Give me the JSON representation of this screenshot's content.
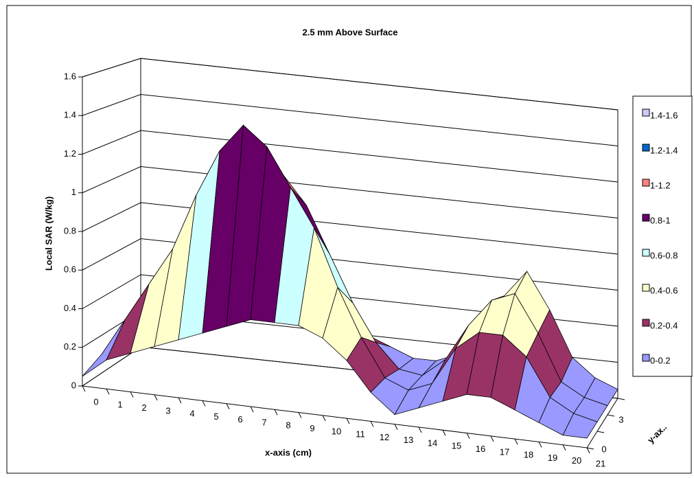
{
  "chart_data": {
    "type": "surface",
    "title": "2.5 mm Above Surface",
    "y_label": "Local SAR (W/kg)",
    "x_label": "x-axis (cm)",
    "depth_label": "y-ax..",
    "categories": [
      "0",
      "1",
      "2",
      "3",
      "4",
      "5",
      "6",
      "7",
      "8",
      "9",
      "10",
      "11",
      "12",
      "13",
      "14",
      "15",
      "16",
      "17",
      "18",
      "19",
      "20",
      "21"
    ],
    "series": [
      {
        "name": "0",
        "values": [
          0.05,
          0.15,
          0.2,
          0.25,
          0.3,
          0.35,
          0.4,
          0.45,
          0.45,
          0.45,
          0.4,
          0.3,
          0.15,
          0.05,
          0.1,
          0.15,
          0.2,
          0.2,
          0.15,
          0.1,
          0.05,
          0.05
        ]
      },
      {
        "name": null,
        "values": [
          0.1,
          0.3,
          0.5,
          0.7,
          1.0,
          1.25,
          1.4,
          1.3,
          1.1,
          0.9,
          0.6,
          0.35,
          0.15,
          0.1,
          0.15,
          0.35,
          0.45,
          0.45,
          0.35,
          0.15,
          0.08,
          0.05
        ]
      },
      {
        "name": null,
        "values": [
          0.1,
          0.25,
          0.45,
          0.8,
          1.1,
          1.25,
          1.2,
          1.1,
          0.95,
          0.7,
          0.45,
          0.25,
          0.12,
          0.1,
          0.2,
          0.4,
          0.55,
          0.6,
          0.4,
          0.15,
          0.08,
          0.05
        ]
      },
      {
        "name": "3",
        "values": [
          0.05,
          0.15,
          0.3,
          0.5,
          0.4,
          0.35,
          0.3,
          0.3,
          0.3,
          0.25,
          0.2,
          0.15,
          0.1,
          0.1,
          0.15,
          0.3,
          0.5,
          0.65,
          0.45,
          0.2,
          0.1,
          0.05
        ]
      }
    ],
    "ylim": [
      0,
      1.6
    ],
    "yticks": [
      0,
      0.2,
      0.4,
      0.6,
      0.8,
      1,
      1.2,
      1.4,
      1.6
    ],
    "grid": true,
    "bands": [
      {
        "name": "0-0.2",
        "color": "#9999ff"
      },
      {
        "name": "0.2-0.4",
        "color": "#993366"
      },
      {
        "name": "0.4-0.6",
        "color": "#ffffcc"
      },
      {
        "name": "0.6-0.8",
        "color": "#ccffff"
      },
      {
        "name": "0.8-1",
        "color": "#660066"
      },
      {
        "name": "1-1.2",
        "color": "#ff8080"
      },
      {
        "name": "1.2-1.4",
        "color": "#0066cc"
      },
      {
        "name": "1.4-1.6",
        "color": "#ccccff"
      }
    ]
  }
}
